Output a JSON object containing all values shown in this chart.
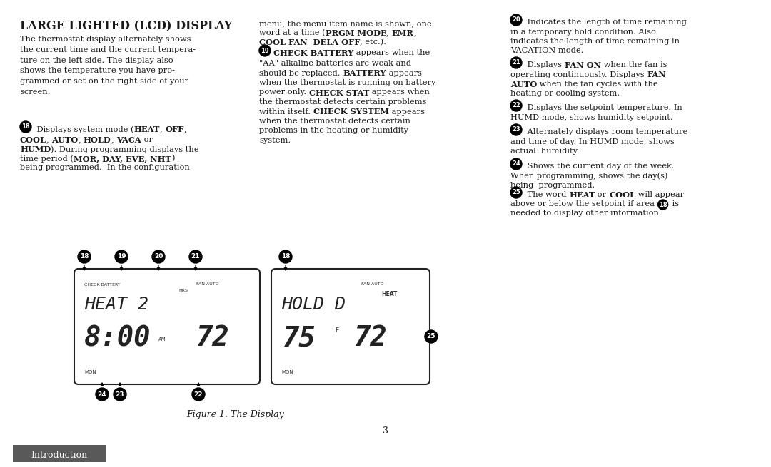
{
  "bg_color": "#ffffff",
  "page_width": 10.8,
  "page_height": 6.55,
  "intro_tab_color": "#595959",
  "intro_text": "Introduction",
  "figure_caption": "Figure 1. The Display",
  "page_number": "3"
}
